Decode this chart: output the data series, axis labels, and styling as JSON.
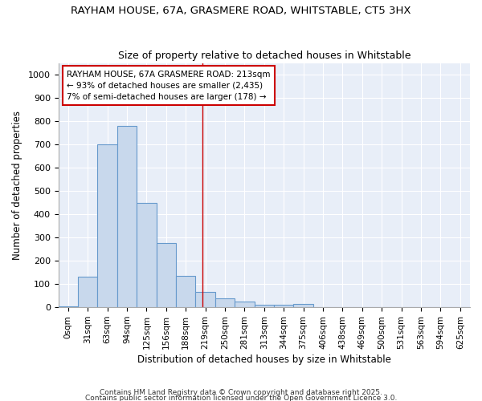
{
  "title": "RAYHAM HOUSE, 67A, GRASMERE ROAD, WHITSTABLE, CT5 3HX",
  "subtitle": "Size of property relative to detached houses in Whitstable",
  "xlabel": "Distribution of detached houses by size in Whitstable",
  "ylabel": "Number of detached properties",
  "bar_color": "#c8d8ec",
  "bar_edge_color": "#6699cc",
  "plot_bg_color": "#e8eef8",
  "fig_bg_color": "#ffffff",
  "grid_color": "#ffffff",
  "categories": [
    "0sqm",
    "31sqm",
    "63sqm",
    "94sqm",
    "125sqm",
    "156sqm",
    "188sqm",
    "219sqm",
    "250sqm",
    "281sqm",
    "313sqm",
    "344sqm",
    "375sqm",
    "406sqm",
    "438sqm",
    "469sqm",
    "500sqm",
    "531sqm",
    "563sqm",
    "594sqm",
    "625sqm"
  ],
  "values": [
    5,
    130,
    700,
    780,
    450,
    275,
    135,
    65,
    40,
    25,
    10,
    10,
    15,
    0,
    0,
    0,
    0,
    0,
    0,
    0,
    0
  ],
  "ylim": [
    0,
    1050
  ],
  "yticks": [
    0,
    100,
    200,
    300,
    400,
    500,
    600,
    700,
    800,
    900,
    1000
  ],
  "property_line_x": 6.87,
  "annotation_text": "RAYHAM HOUSE, 67A GRASMERE ROAD: 213sqm\n← 93% of detached houses are smaller (2,435)\n7% of semi-detached houses are larger (178) →",
  "annotation_box_color": "#ffffff",
  "annotation_border_color": "#cc0000",
  "footer1": "Contains HM Land Registry data © Crown copyright and database right 2025.",
  "footer2": "Contains public sector information licensed under the Open Government Licence 3.0."
}
